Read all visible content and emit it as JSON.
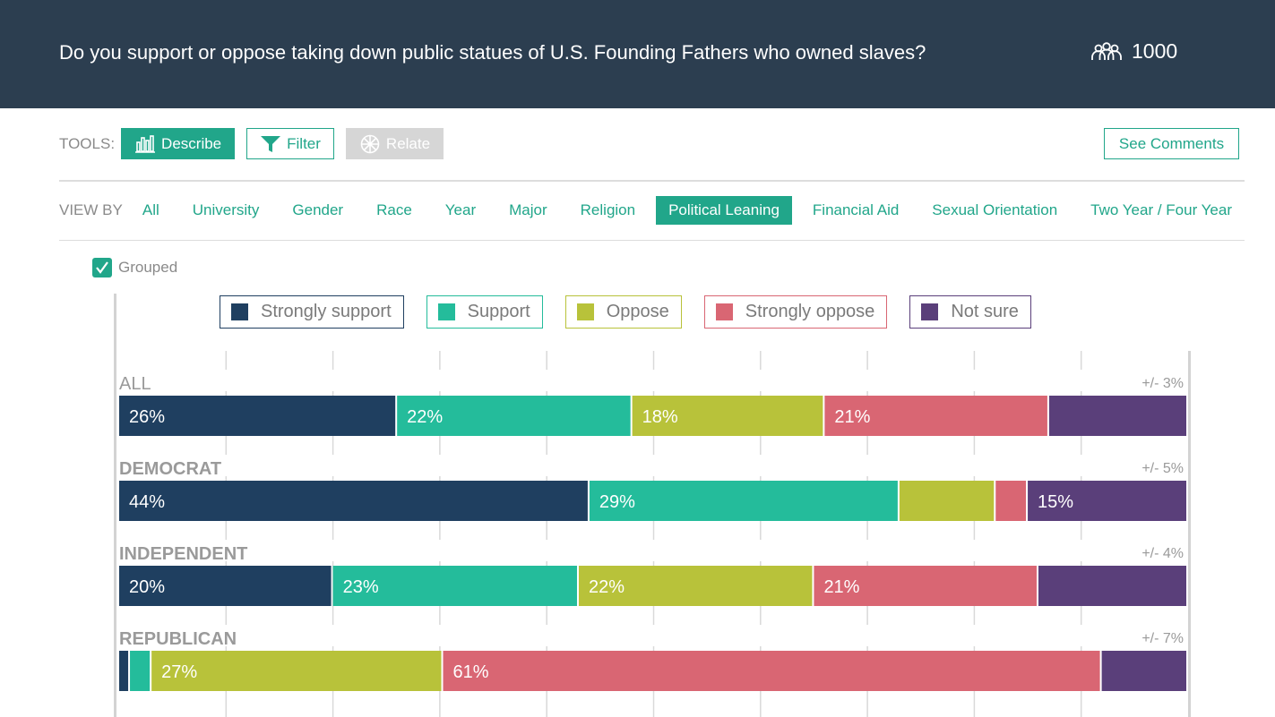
{
  "header": {
    "question": "Do you support or oppose taking down public statues of U.S. Founding Fathers who owned slaves?",
    "respondents": "1000",
    "respondents_icon": "people-group-icon"
  },
  "tools": {
    "label": "TOOLS:",
    "describe": "Describe",
    "filter": "Filter",
    "relate": "Relate",
    "see_comments": "See Comments"
  },
  "viewby": {
    "label": "VIEW BY",
    "tabs": [
      "All",
      "University",
      "Gender",
      "Race",
      "Year",
      "Major",
      "Religion",
      "Political Leaning",
      "Financial Aid",
      "Sexual Orientation",
      "Two Year / Four Year"
    ],
    "active": "Political Leaning"
  },
  "grouped": {
    "label": "Grouped",
    "checked": true
  },
  "colors": {
    "accent": "#21a68a",
    "header_bg": "#2c3e50"
  },
  "chart_data": {
    "type": "bar",
    "stacked": true,
    "orientation": "horizontal",
    "categories": [
      "ALL",
      "DEMOCRAT",
      "INDEPENDENT",
      "REPUBLICAN"
    ],
    "margins": [
      "+/- 3%",
      "+/- 5%",
      "+/- 4%",
      "+/- 7%"
    ],
    "series": [
      {
        "name": "Strongly support",
        "color": "#1f3f60",
        "values": [
          26,
          44,
          20,
          1
        ]
      },
      {
        "name": "Support",
        "color": "#24bc9b",
        "values": [
          22,
          29,
          23,
          2
        ]
      },
      {
        "name": "Oppose",
        "color": "#b8c23a",
        "values": [
          18,
          9,
          22,
          27
        ]
      },
      {
        "name": "Strongly oppose",
        "color": "#d96673",
        "values": [
          21,
          3,
          21,
          61
        ]
      },
      {
        "name": "Not sure",
        "color": "#5a3f7a",
        "values": [
          13,
          15,
          14,
          8
        ]
      }
    ],
    "data_labels": [
      [
        "26%",
        "22%",
        "18%",
        "21%",
        ""
      ],
      [
        "44%",
        "29%",
        "",
        "",
        "15%"
      ],
      [
        "20%",
        "23%",
        "22%",
        "21%",
        ""
      ],
      [
        "",
        "",
        "27%",
        "61%",
        ""
      ]
    ],
    "xlim": [
      0,
      100
    ],
    "grid": true,
    "legend_position": "top"
  }
}
